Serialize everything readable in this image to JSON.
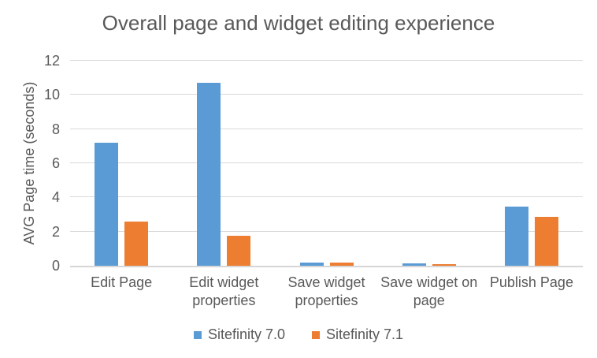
{
  "chart_data": {
    "type": "bar",
    "title": "Overall page and widget editing experience",
    "xlabel": "",
    "ylabel": "AVG Page time (seconds)",
    "categories": [
      "Edit Page",
      "Edit widget properties",
      "Save widget properties",
      "Save widget on page",
      "Publish Page"
    ],
    "series": [
      {
        "name": "Sitefinity 7.0",
        "color": "#5B9BD5",
        "values": [
          7.2,
          10.7,
          0.2,
          0.13,
          3.45
        ]
      },
      {
        "name": "Sitefinity 7.1",
        "color": "#ED7D31",
        "values": [
          2.6,
          1.75,
          0.2,
          0.07,
          2.85
        ]
      }
    ],
    "ylim": [
      0,
      12
    ],
    "yticks": [
      0,
      2,
      4,
      6,
      8,
      10,
      12
    ],
    "grid": "horizontal",
    "legend_position": "bottom",
    "colors": {
      "gridline": "#D9D9D9",
      "axis_text": "#595959",
      "title_text": "#595959",
      "background": "#FFFFFF"
    }
  }
}
